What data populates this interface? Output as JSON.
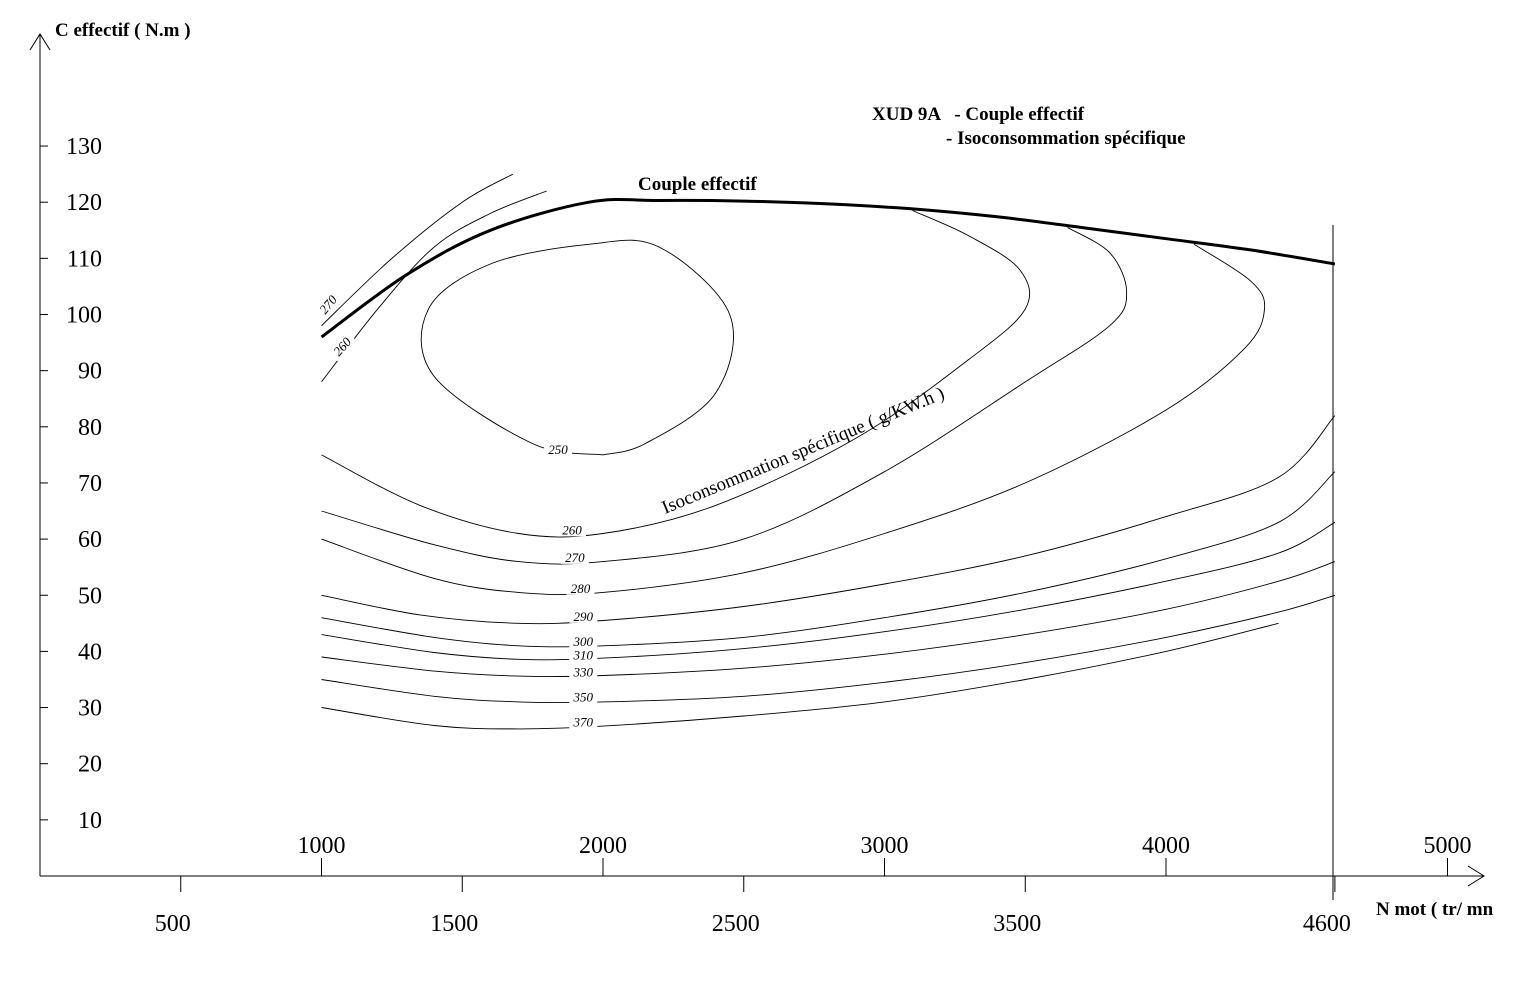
{
  "chart_data": {
    "type": "line",
    "title_lines": [
      "XUD 9A   - Couple effectif",
      "- Isoconsommation spécifique"
    ],
    "ylabel": "C effectif  ( N.m )",
    "xlabel": "N mot ( tr/ mn",
    "ylim": [
      0,
      140
    ],
    "xlim": [
      0,
      5100
    ],
    "y_ticks": [
      "10",
      "20",
      "30",
      "40",
      "50",
      "60",
      "70",
      "80",
      "90",
      "100",
      "110",
      "120",
      "130"
    ],
    "x_ticks_upper": [
      "1000",
      "2000",
      "3000",
      "4000",
      "5000"
    ],
    "x_ticks_lower": [
      "500",
      "1500",
      "2500",
      "3500",
      "4600"
    ],
    "torque_curve": {
      "name": "Couple effectif",
      "x": [
        1000,
        1300,
        1600,
        1950,
        2200,
        2500,
        2800,
        3100,
        3400,
        3700,
        4000,
        4300,
        4600
      ],
      "y": [
        96,
        107,
        115,
        120,
        120.3,
        120.2,
        119.7,
        118.8,
        117.4,
        115.5,
        113.5,
        111.5,
        109
      ]
    },
    "iso_title": "Isoconsommation spécifique ( g/KW.h )",
    "iso_curves": [
      {
        "label": "270",
        "x": [
          1000,
          1250,
          1500,
          1680
        ],
        "y": [
          98,
          110,
          120,
          125
        ]
      },
      {
        "label": "260",
        "x": [
          1000,
          1200,
          1400,
          1600,
          1800
        ],
        "y": [
          88,
          101,
          112,
          118,
          122
        ]
      },
      {
        "label": "250",
        "x": [
          2000,
          1750,
          1400,
          1380,
          1600,
          1950,
          2200,
          2450,
          2400,
          2150,
          2000
        ],
        "y": [
          75,
          77,
          89,
          101,
          109,
          112.5,
          112,
          100,
          86,
          77,
          75
        ]
      },
      {
        "label": "260",
        "x": [
          1000,
          1350,
          1700,
          2000,
          2400,
          2900,
          3300,
          3500,
          3480,
          3300,
          3100
        ],
        "y": [
          75,
          66,
          61,
          61,
          66,
          78,
          92,
          101,
          108,
          114,
          118.5
        ]
      },
      {
        "label": "270",
        "x": [
          1000,
          1400,
          1700,
          2000,
          2500,
          3000,
          3500,
          3800,
          3860,
          3800,
          3650
        ],
        "y": [
          65,
          59,
          56,
          56,
          60,
          72,
          88,
          98,
          104,
          111,
          115.5
        ]
      },
      {
        "label": "280",
        "x": [
          1000,
          1400,
          1700,
          2000,
          2500,
          3000,
          3500,
          4000,
          4280,
          4350,
          4300,
          4100
        ],
        "y": [
          60,
          53,
          50.5,
          50.5,
          54,
          61,
          70,
          83,
          94,
          101,
          106,
          112.5
        ]
      },
      {
        "label": "290",
        "x": [
          1000,
          1350,
          1700,
          2000,
          2500,
          3000,
          3500,
          4000,
          4400,
          4600
        ],
        "y": [
          50,
          46.5,
          45,
          45.5,
          48,
          52,
          57,
          64,
          71,
          82
        ]
      },
      {
        "label": "300",
        "x": [
          1000,
          1400,
          1700,
          2000,
          2500,
          3000,
          3500,
          4000,
          4400,
          4600
        ],
        "y": [
          46,
          42.5,
          41,
          41,
          42.5,
          46,
          50.5,
          56.5,
          63,
          72
        ]
      },
      {
        "label": "310",
        "x": [
          1000,
          1400,
          1700,
          2000,
          2500,
          3000,
          3500,
          4000,
          4400,
          4600
        ],
        "y": [
          43,
          39.8,
          38.6,
          38.8,
          40.5,
          43.5,
          47.5,
          52.5,
          57.5,
          63
        ]
      },
      {
        "label": "330",
        "x": [
          1000,
          1400,
          1700,
          2000,
          2500,
          3000,
          3500,
          4000,
          4400,
          4600
        ],
        "y": [
          39,
          36.5,
          35.6,
          35.7,
          37,
          39.5,
          43,
          47.5,
          52.5,
          56
        ]
      },
      {
        "label": "350",
        "x": [
          1000,
          1400,
          1700,
          2000,
          2500,
          3000,
          3500,
          4000,
          4400,
          4600
        ],
        "y": [
          35,
          32,
          31,
          31,
          32,
          34.5,
          38,
          42.5,
          47,
          50
        ]
      },
      {
        "label": "370",
        "x": [
          1000,
          1400,
          1700,
          2000,
          2500,
          3000,
          3500,
          4000,
          4400
        ],
        "y": [
          30,
          26.8,
          26.2,
          26.7,
          28.5,
          31,
          35,
          40,
          45
        ]
      }
    ]
  }
}
